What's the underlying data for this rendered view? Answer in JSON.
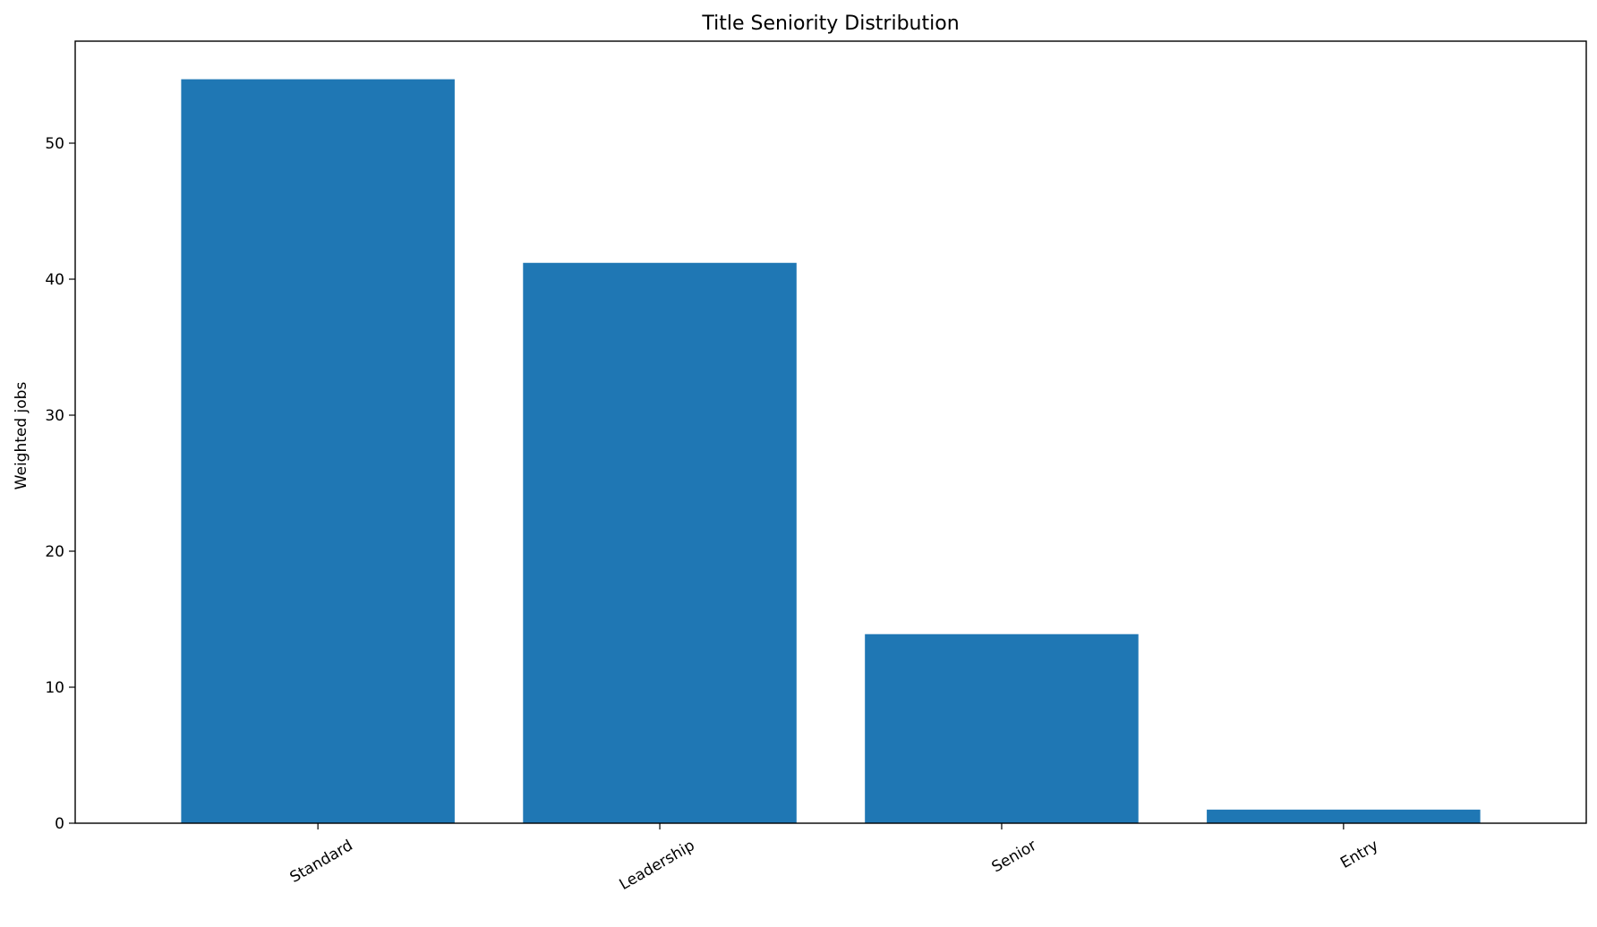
{
  "chart_data": {
    "type": "bar",
    "title": "Title Seniority Distribution",
    "xlabel": "",
    "ylabel": "Weighted jobs",
    "categories": [
      "Standard",
      "Leadership",
      "Senior",
      "Entry"
    ],
    "values": [
      54.7,
      41.2,
      13.9,
      1.0
    ],
    "ylim": [
      0,
      57.5
    ],
    "yticks": [
      0,
      10,
      20,
      30,
      40,
      50
    ],
    "bar_color": "#1f77b4",
    "grid": false,
    "legend": "none",
    "x_tick_rotation_deg": 30
  }
}
